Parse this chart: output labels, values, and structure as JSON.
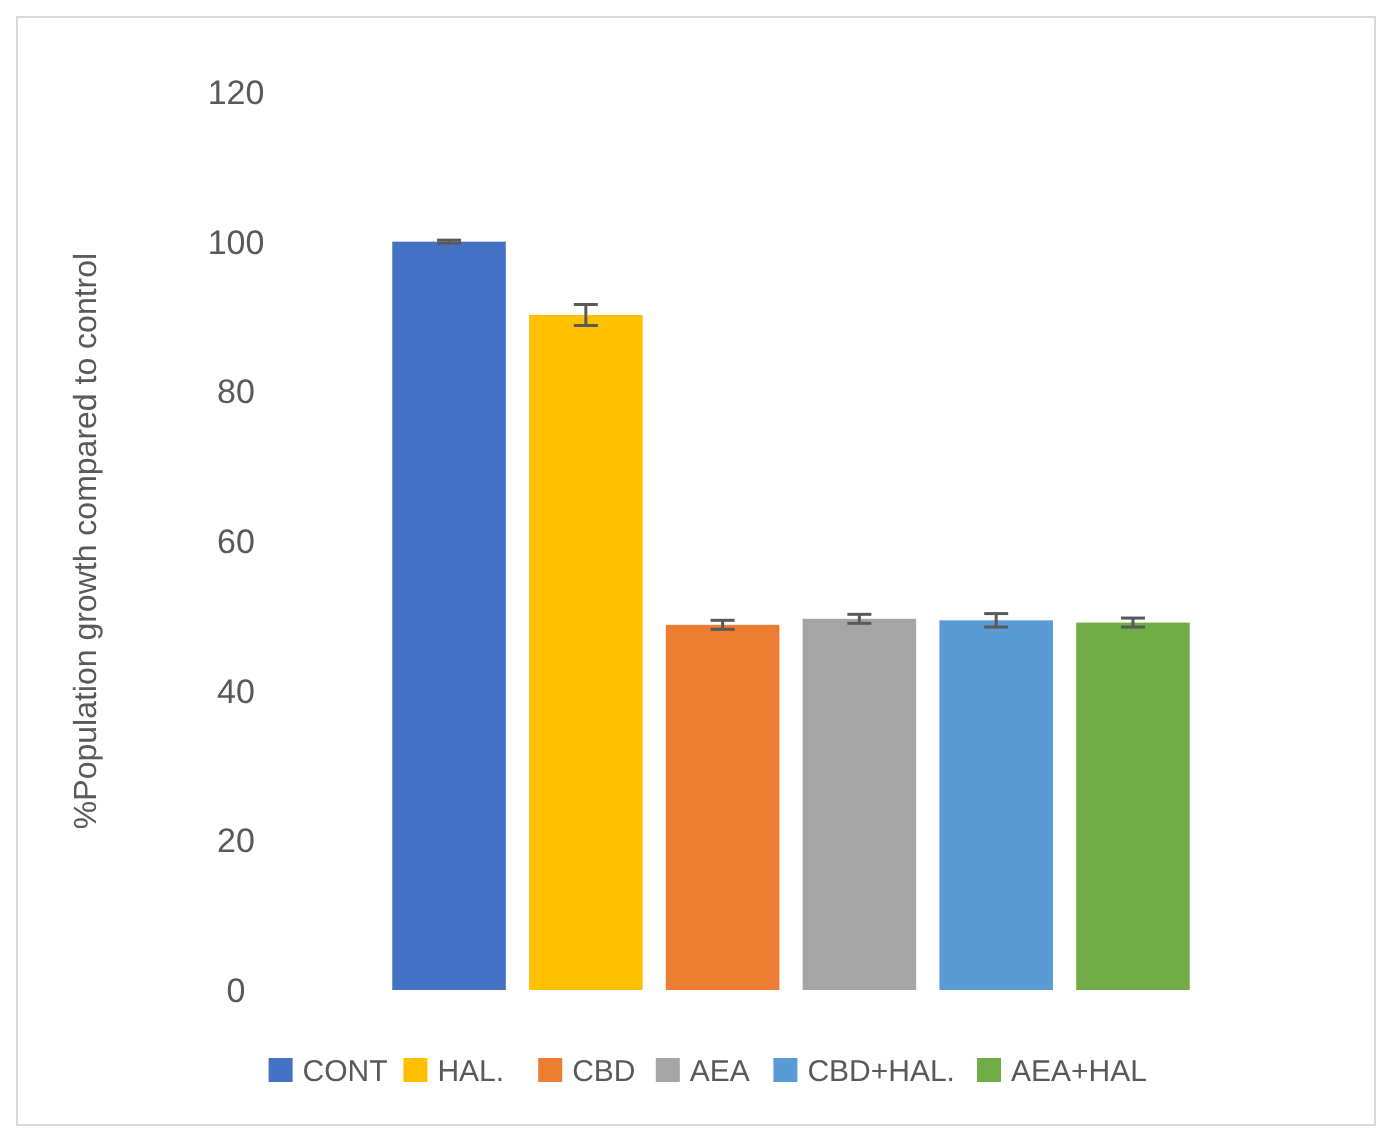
{
  "chart_data": {
    "type": "bar",
    "ylabel": "%Population growth compared to control",
    "categories": [
      null
    ],
    "ylim": [
      0,
      120
    ],
    "yticks": [
      0,
      20,
      40,
      60,
      80,
      100,
      120
    ],
    "grid": false,
    "legend": "bottom",
    "series": [
      {
        "name": "CONT",
        "color": "#4472c4",
        "values": [
          100
        ],
        "errors": [
          0.2
        ]
      },
      {
        "name": "HAL.",
        "color": "#ffc000",
        "values": [
          90.2
        ],
        "errors": [
          1.4
        ]
      },
      {
        "name": "CBD",
        "color": "#ed7d31",
        "values": [
          48.8
        ],
        "errors": [
          0.6
        ]
      },
      {
        "name": "AEA",
        "color": "#a5a5a5",
        "values": [
          49.6
        ],
        "errors": [
          0.6
        ]
      },
      {
        "name": "CBD+HAL.",
        "color": "#5b9bd5",
        "values": [
          49.4
        ],
        "errors": [
          0.9
        ]
      },
      {
        "name": "AEA+HAL",
        "color": "#70ad47",
        "values": [
          49.1
        ],
        "errors": [
          0.6
        ]
      }
    ]
  }
}
